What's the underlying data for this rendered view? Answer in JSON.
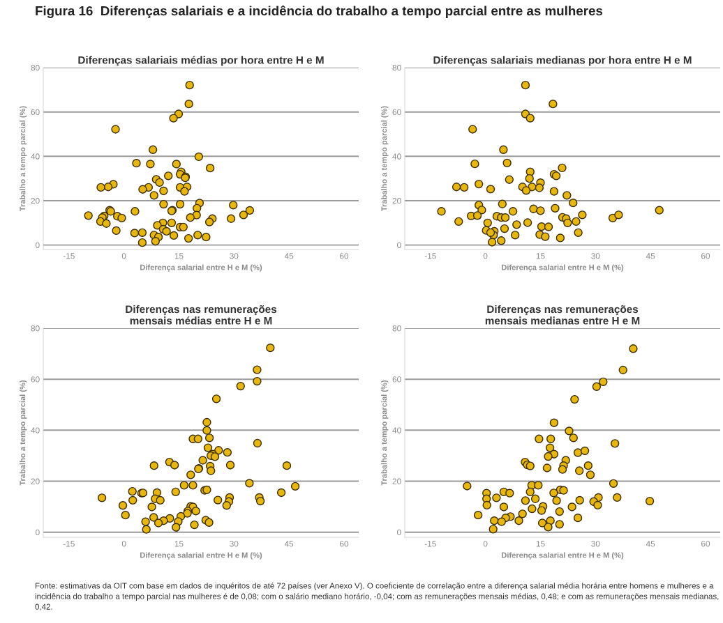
{
  "chart_data": [
    {
      "type": "other",
      "title": "Figura 16  Diferenças salariais e a incidência do trabalho a tempo parcial entre as mulheres",
      "annotations": [
        "Fonte: estimativas da OIT com base em dados de inquéritos de até 72 países (ver Anexo V). O coeficiente de correlação entre a diferença salarial média horária entre homens e mulheres e a incidência do trabalho a tempo parcial nas mulheres é de 0,08; com o salário mediano horário, -0,04; com as remunerações mensais médias, 0,48; e com as remunerações mensais medianas, 0,42."
      ]
    },
    {
      "type": "scatter",
      "title": "Diferenças salariais médias por hora entre H e M",
      "xlabel": "Diferença salarial entre H e M (%)",
      "ylabel": "Trabalho a tempo parcial (%)",
      "color": "#e8b70d",
      "marker": "circle",
      "grid": "y",
      "xlim": [
        -22,
        64
      ],
      "ylim": [
        -2,
        80
      ],
      "xticks": [
        -15,
        0,
        15,
        30,
        45,
        60
      ],
      "yticks": [
        0,
        20,
        40,
        60,
        80
      ],
      "x": [
        17.9,
        17.7,
        14.9,
        13.5,
        -2.3,
        7.9,
        20.4,
        3.4,
        7.2,
        14.3,
        23.5,
        15.6,
        15.3,
        12.1,
        16.8,
        16.7,
        8.8,
        9.7,
        -2.9,
        -4.3,
        -6.3,
        6.7,
        5.1,
        15.3,
        17.2,
        16.5,
        10.8,
        8.2,
        10.8,
        15.3,
        20.6,
        29.8,
        19.9,
        13.2,
        13.0,
        3.0,
        -3.9,
        -3.6,
        34.3,
        32.6,
        -9.7,
        -5.4,
        -5.9,
        -1.8,
        -0.6,
        19.8,
        18.1,
        24.1,
        23.3,
        29.2,
        -6.4,
        -4.8,
        10.6,
        13.0,
        9.1,
        10.7,
        11.6,
        15.3,
        16.2,
        -2.1,
        2.9,
        5.0,
        8.2,
        9.4,
        13.6,
        20.1,
        22.4,
        17.6,
        8.6,
        5.0
      ],
      "values": [
        72.1,
        63.6,
        59.1,
        57.2,
        52.2,
        43.0,
        39.8,
        36.9,
        36.5,
        36.5,
        34.7,
        33.0,
        31.9,
        31.2,
        30.8,
        30.3,
        29.6,
        28.2,
        27.4,
        26.2,
        26.0,
        26.0,
        25.1,
        26.0,
        26.2,
        24.2,
        24.4,
        22.4,
        18.4,
        18.4,
        18.9,
        18.0,
        16.6,
        15.7,
        15.4,
        15.2,
        15.7,
        15.2,
        15.6,
        13.6,
        13.3,
        13.1,
        12.4,
        13.0,
        12.2,
        13.5,
        12.4,
        11.9,
        10.4,
        11.9,
        10.6,
        9.7,
        10.0,
        10.0,
        8.9,
        7.1,
        6.2,
        8.1,
        8.1,
        6.5,
        5.4,
        5.6,
        4.5,
        3.6,
        4.3,
        4.5,
        3.6,
        3.0,
        1.7,
        1.1
      ]
    },
    {
      "type": "scatter",
      "title": "Diferenças salariais medianas por hora entre H e M",
      "xlabel": "Diferença salarial entre H e M (%)",
      "ylabel": "Trabalho a tempo parcial (%)",
      "color": "#e8b70d",
      "marker": "circle",
      "grid": "y",
      "xlim": [
        -22,
        64
      ],
      "ylim": [
        -2,
        80
      ],
      "xticks": [
        -15,
        0,
        15,
        30,
        45,
        60
      ],
      "yticks": [
        0,
        20,
        40,
        60,
        80
      ],
      "x": [
        10.9,
        18.4,
        10.9,
        12.2,
        -3.5,
        4.9,
        -2.9,
        5.9,
        20.9,
        12.2,
        18.7,
        19.3,
        12.0,
        6.5,
        15.0,
        -7.9,
        -5.8,
        -1.8,
        10.1,
        12.7,
        14.7,
        1.4,
        11.1,
        18.7,
        22.2,
        23.9,
        -1.8,
        4.6,
        -1.0,
        -12.0,
        7.5,
        13.1,
        15.0,
        19.0,
        -3.9,
        -2.2,
        3.1,
        4.3,
        5.4,
        21.0,
        22.0,
        26.4,
        34.7,
        36.3,
        47.4,
        -7.3,
        0.6,
        11.5,
        22.4,
        24.7,
        8.5,
        15.3,
        17.2,
        5.2,
        0.2,
        2.4,
        2.2,
        1.4,
        25.3,
        8.1,
        14.8,
        16.3,
        20.4,
        4.3,
        1.8
      ],
      "values": [
        72.1,
        63.6,
        59.1,
        57.2,
        52.2,
        43.0,
        36.6,
        37.0,
        34.8,
        33.0,
        31.9,
        31.2,
        30.0,
        29.5,
        28.1,
        26.2,
        26.0,
        27.5,
        26.2,
        26.2,
        25.8,
        25.2,
        24.6,
        24.2,
        22.4,
        19.0,
        18.0,
        18.5,
        15.8,
        15.2,
        15.2,
        16.3,
        15.5,
        16.6,
        13.1,
        13.3,
        13.0,
        12.4,
        12.4,
        12.5,
        11.9,
        13.6,
        12.2,
        13.6,
        15.7,
        10.6,
        10.0,
        10.1,
        10.0,
        10.6,
        9.2,
        8.3,
        8.2,
        7.4,
        6.6,
        6.2,
        4.5,
        5.6,
        5.6,
        4.5,
        4.7,
        3.8,
        3.2,
        2.0,
        1.3
      ]
    },
    {
      "type": "scatter",
      "title": "Diferenças nas remunerações\nmensais médias entre H e M",
      "xlabel": "Diferença salarial entre H e M (%)",
      "ylabel": "Trabalho a tempo parcial (%)",
      "color": "#e8b70d",
      "marker": "circle",
      "grid": "y",
      "xlim": [
        -22,
        64
      ],
      "ylim": [
        -2,
        80
      ],
      "xticks": [
        -15,
        0,
        15,
        30,
        45,
        60
      ],
      "yticks": [
        0,
        20,
        40,
        60,
        80
      ],
      "x": [
        39.9,
        36.3,
        36.3,
        31.8,
        25.2,
        22.6,
        22.6,
        23.3,
        18.8,
        20.2,
        36.4,
        22.9,
        25.8,
        28.2,
        24.2,
        23.7,
        24.8,
        21.5,
        12.4,
        13.8,
        8.2,
        29.0,
        44.4,
        23.5,
        20.4,
        23.7,
        20.3,
        18.2,
        34.2,
        16.4,
        18.8,
        46.7,
        2.3,
        4.8,
        5.2,
        9.0,
        14.1,
        22.0,
        22.6,
        42.9,
        -6.0,
        8.5,
        2.4,
        9.9,
        28.8,
        36.9,
        25.6,
        28.6,
        37.2,
        -0.3,
        7.6,
        28.0,
        18.2,
        18.8,
        19.6,
        17.4,
        17.3,
        0.4,
        8.1,
        15.5,
        12.5,
        10.8,
        5.9,
        9.4,
        14.8,
        22.3,
        23.2,
        19.2,
        14.2,
        6.1
      ],
      "values": [
        72.3,
        63.7,
        59.2,
        57.3,
        52.3,
        43.1,
        39.9,
        37.0,
        36.6,
        36.6,
        34.9,
        33.1,
        32.1,
        31.3,
        30.6,
        30.0,
        29.6,
        28.2,
        27.5,
        26.3,
        26.1,
        26.3,
        26.1,
        25.9,
        25.0,
        24.1,
        24.8,
        22.5,
        19.2,
        18.4,
        18.4,
        18.0,
        16.0,
        15.3,
        15.4,
        15.5,
        15.8,
        16.4,
        16.6,
        15.5,
        13.5,
        13.1,
        12.5,
        12.5,
        13.6,
        13.6,
        12.6,
        12.0,
        12.2,
        10.5,
        9.9,
        10.5,
        10.1,
        9.9,
        8.3,
        8.3,
        7.4,
        6.7,
        5.8,
        6.2,
        5.4,
        4.5,
        4.1,
        3.6,
        4.2,
        4.7,
        3.8,
        2.9,
        1.9,
        1.1
      ]
    },
    {
      "type": "scatter",
      "title": "Diferenças nas remunerações\nmensais medianas entre H e M",
      "xlabel": "Diferença salarial entre H e M (%)",
      "ylabel": "Trabalho a tempo parcial (%)",
      "color": "#e8b70d",
      "marker": "circle",
      "grid": "y",
      "xlim": [
        -22,
        64
      ],
      "ylim": [
        -2,
        80
      ],
      "xticks": [
        -15,
        0,
        15,
        30,
        45,
        60
      ],
      "yticks": [
        0,
        20,
        40,
        60,
        80
      ],
      "x": [
        40.3,
        37.5,
        32.1,
        30.3,
        24.3,
        18.7,
        22.8,
        24.0,
        14.6,
        17.8,
        35.3,
        17.6,
        25.2,
        27.1,
        18.7,
        17.1,
        10.8,
        21.9,
        11.4,
        12.2,
        21.3,
        28.0,
        16.8,
        21.0,
        25.6,
        28.6,
        -5.0,
        34.9,
        12.6,
        14.4,
        20.4,
        21.3,
        0.3,
        5.0,
        6.6,
        12.2,
        18.6,
        3.0,
        0.3,
        13.6,
        30.8,
        35.9,
        10.9,
        19.4,
        25.7,
        44.8,
        29.5,
        0.4,
        5.0,
        23.6,
        30.6,
        15.7,
        12.7,
        15.3,
        20.2,
        -2.0,
        10.1,
        6.8,
        5.5,
        25.2,
        9.1,
        2.4,
        4.4,
        15.5,
        17.7,
        20.2,
        17.1,
        2.1
      ],
      "values": [
        72.0,
        63.6,
        59.0,
        57.1,
        52.1,
        42.9,
        39.7,
        37.0,
        36.6,
        36.6,
        34.8,
        33.1,
        31.2,
        31.9,
        30.6,
        29.7,
        27.5,
        28.2,
        26.4,
        26.0,
        26.1,
        26.1,
        25.2,
        24.6,
        24.1,
        22.5,
        18.1,
        19.1,
        18.4,
        18.4,
        16.6,
        16.4,
        15.3,
        15.8,
        15.3,
        15.8,
        15.4,
        13.5,
        13.1,
        13.1,
        13.6,
        13.6,
        12.4,
        12.4,
        12.5,
        12.2,
        12.0,
        10.6,
        9.9,
        9.9,
        10.6,
        10.1,
        9.2,
        8.5,
        8.1,
        6.7,
        7.2,
        6.1,
        5.6,
        5.6,
        4.5,
        4.5,
        4.1,
        3.6,
        4.5,
        3.1,
        2.0,
        1.2
      ]
    }
  ]
}
